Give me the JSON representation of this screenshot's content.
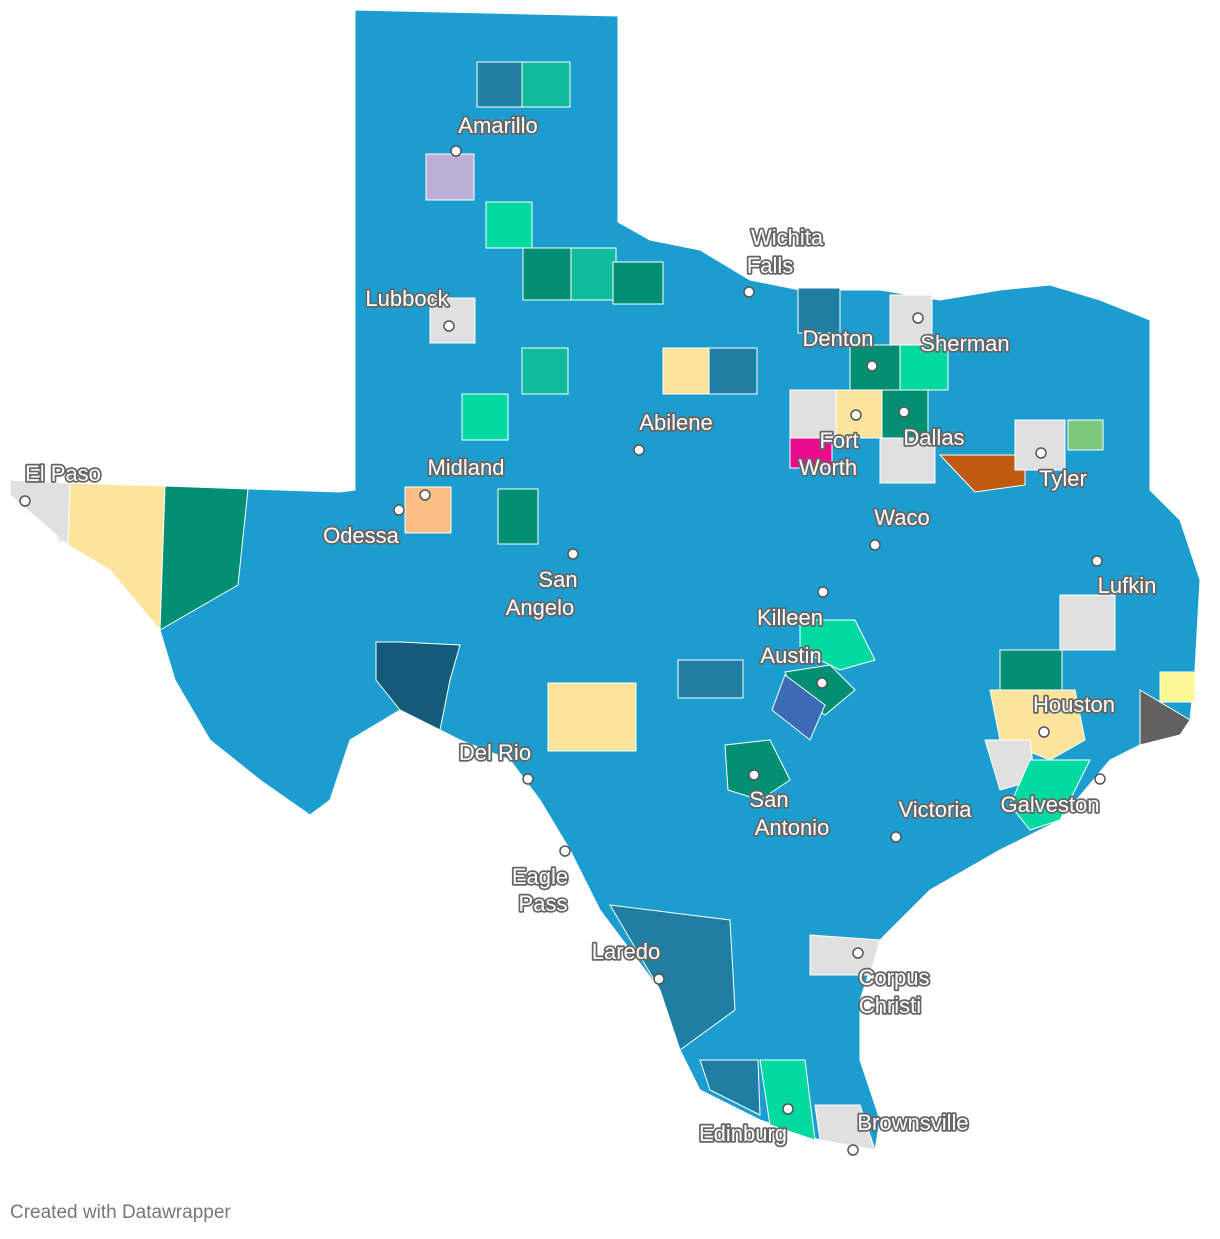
{
  "map": {
    "cities": [
      {
        "label_lines": [
          "Amarillo"
        ]
      },
      {
        "label_lines": [
          "Wichita",
          "Falls"
        ]
      },
      {
        "label_lines": [
          "Lubbock"
        ]
      },
      {
        "label_lines": [
          "Denton"
        ]
      },
      {
        "label_lines": [
          "Sherman"
        ]
      },
      {
        "label_lines": [
          "Abilene"
        ]
      },
      {
        "label_lines": [
          "Fort",
          "Worth"
        ]
      },
      {
        "label_lines": [
          "Dallas"
        ]
      },
      {
        "label_lines": [
          "El Paso"
        ]
      },
      {
        "label_lines": [
          "Midland"
        ]
      },
      {
        "label_lines": [
          "Tyler"
        ]
      },
      {
        "label_lines": [
          "Odessa"
        ]
      },
      {
        "label_lines": [
          "Waco"
        ]
      },
      {
        "label_lines": [
          "San",
          "Angelo"
        ]
      },
      {
        "label_lines": [
          "Lufkin"
        ]
      },
      {
        "label_lines": [
          "Killeen"
        ]
      },
      {
        "label_lines": [
          "Austin"
        ]
      },
      {
        "label_lines": [
          "Houston"
        ]
      },
      {
        "label_lines": [
          "Del Rio"
        ]
      },
      {
        "label_lines": [
          "Galveston"
        ]
      },
      {
        "label_lines": [
          "Victoria"
        ]
      },
      {
        "label_lines": [
          "San",
          "Antonio"
        ]
      },
      {
        "label_lines": [
          "Eagle",
          "Pass"
        ]
      },
      {
        "label_lines": [
          "Laredo"
        ]
      },
      {
        "label_lines": [
          "Corpus",
          "Christi"
        ]
      },
      {
        "label_lines": [
          "Brownsville"
        ]
      },
      {
        "label_lines": [
          "Edinburg"
        ]
      }
    ],
    "footer": "Created with Datawrapper"
  }
}
